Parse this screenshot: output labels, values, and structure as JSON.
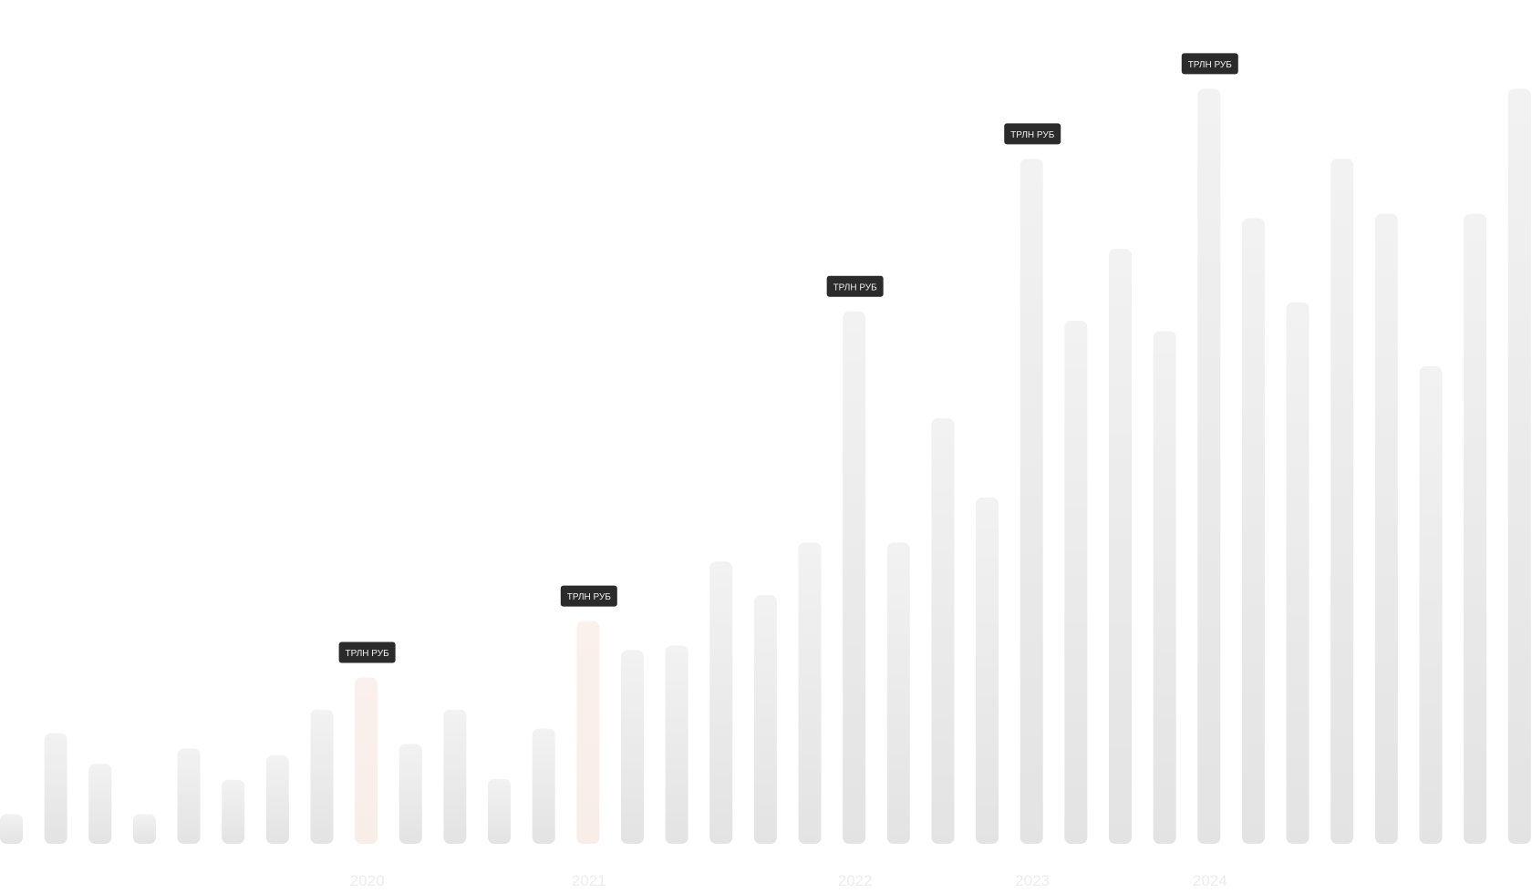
{
  "chart_data": {
    "type": "bar",
    "title": "",
    "xlabel": "",
    "ylabel": "",
    "ylim": [
      0,
      100
    ],
    "grid": false,
    "legend": "none",
    "bar_label_text": "ТРЛН РУБ",
    "years": [
      {
        "label": "2020",
        "at_index": 8
      },
      {
        "label": "2021",
        "at_index": 13
      },
      {
        "label": "2022",
        "at_index": 19
      },
      {
        "label": "2023",
        "at_index": 23
      },
      {
        "label": "2024",
        "at_index": 27
      }
    ],
    "values": [
      3.9,
      14.5,
      10.5,
      3.9,
      12.5,
      8.4,
      11.6,
      17.6,
      21.8,
      13.1,
      17.6,
      8.5,
      15.1,
      29.2,
      25.4,
      26.0,
      37.0,
      32.6,
      39.5,
      69.8,
      39.5,
      55.8,
      45.4,
      89.8,
      68.6,
      78.0,
      67.2,
      99.0,
      82.0,
      71.0,
      89.8,
      82.6,
      62.6,
      82.6,
      99.0
    ],
    "highlight_indices": [
      8,
      13
    ],
    "labeled_indices": [
      8,
      13,
      19,
      23,
      27
    ],
    "colors": {
      "bar": "#ededed",
      "bar_highlight": "#fbf0ea",
      "tag": "#2b2b2b",
      "tag_text": "#f0f0f0",
      "year_text": "#ededed"
    }
  }
}
